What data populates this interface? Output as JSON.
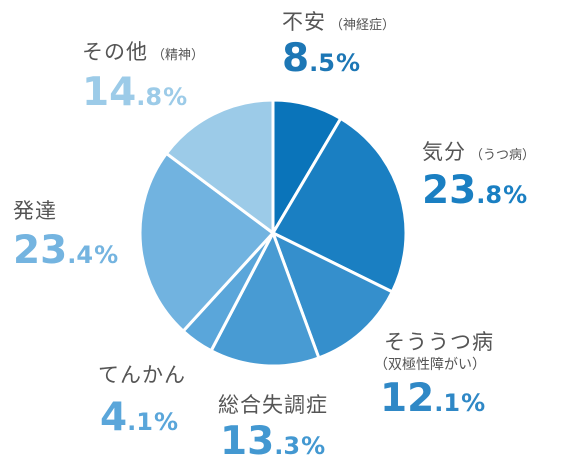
{
  "chart_data": {
    "type": "pie",
    "slices": [
      {
        "label": "不安",
        "sublabel": "（神経症）",
        "value": 8.5,
        "int": "8",
        "dec": ".5",
        "unit": "%",
        "color": "#0a74ba",
        "label_color": "#1d77b5"
      },
      {
        "label": "気分",
        "sublabel": "（うつ病）",
        "value": 23.8,
        "int": "23",
        "dec": ".8",
        "unit": "%",
        "color": "#1a7fc2",
        "label_color": "#1a7fc2"
      },
      {
        "label": "そううつ病",
        "sublabel": "（双極性障がい）",
        "value": 12.1,
        "int": "12",
        "dec": ".1",
        "unit": "%",
        "color": "#358fcc",
        "label_color": "#2f88c6"
      },
      {
        "label": "総合失調症",
        "sublabel": "",
        "value": 13.3,
        "int": "13",
        "dec": ".3",
        "unit": "%",
        "color": "#489bd3",
        "label_color": "#4398d1"
      },
      {
        "label": "てんかん",
        "sublabel": "",
        "value": 4.1,
        "int": "4",
        "dec": ".1",
        "unit": "%",
        "color": "#5aa6da",
        "label_color": "#5aa6da"
      },
      {
        "label": "発達",
        "sublabel": "",
        "value": 23.4,
        "int": "23",
        "dec": ".4",
        "unit": "%",
        "color": "#71b3e0",
        "label_color": "#74b4e0"
      },
      {
        "label": "その他",
        "sublabel": "（精神）",
        "value": 14.8,
        "int": "14",
        "dec": ".8",
        "unit": "%",
        "color": "#9ccbe8",
        "label_color": "#9ccbe8"
      }
    ]
  }
}
